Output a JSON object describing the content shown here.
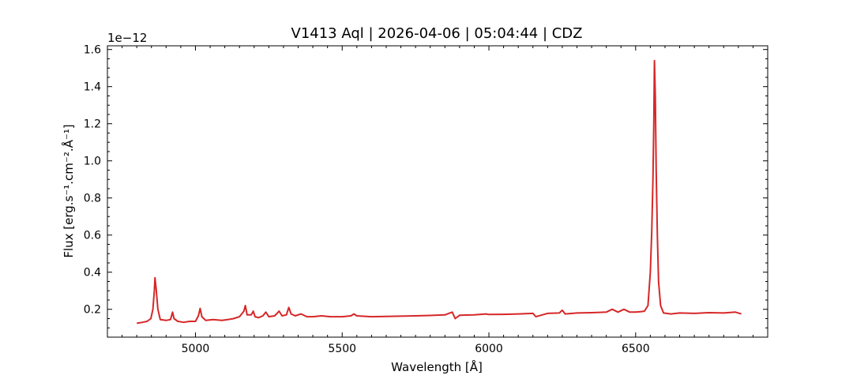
{
  "chart_data": {
    "type": "line",
    "title": "V1413 Aql | 2026-04-06 | 05:04:44 | CDZ",
    "xlabel": "Wavelength [Å]",
    "ylabel": "Flux [erg.s⁻¹.cm⁻².Å⁻¹]",
    "y_offset_label": "1e−12",
    "xlim": [
      4700,
      6950
    ],
    "ylim": [
      0.05,
      1.62
    ],
    "y_scale_factor": 1e-12,
    "xticks": [
      5000,
      5500,
      6000,
      6500
    ],
    "xtick_labels": [
      "5000",
      "5500",
      "6000",
      "6500"
    ],
    "yticks": [
      0.2,
      0.4,
      0.6,
      0.8,
      1.0,
      1.2,
      1.4,
      1.6
    ],
    "ytick_labels": [
      "0.2",
      "0.4",
      "0.6",
      "0.8",
      "1.0",
      "1.2",
      "1.4",
      "1.6"
    ],
    "grid": false,
    "legend": "none",
    "series_color": "#d62728",
    "series": [
      {
        "points": [
          [
            4800,
            0.125
          ],
          [
            4820,
            0.13
          ],
          [
            4835,
            0.135
          ],
          [
            4848,
            0.15
          ],
          [
            4855,
            0.2
          ],
          [
            4860,
            0.3
          ],
          [
            4862,
            0.37
          ],
          [
            4866,
            0.31
          ],
          [
            4872,
            0.2
          ],
          [
            4880,
            0.145
          ],
          [
            4900,
            0.14
          ],
          [
            4915,
            0.145
          ],
          [
            4922,
            0.185
          ],
          [
            4927,
            0.15
          ],
          [
            4940,
            0.135
          ],
          [
            4960,
            0.13
          ],
          [
            4980,
            0.135
          ],
          [
            5000,
            0.135
          ],
          [
            5010,
            0.165
          ],
          [
            5016,
            0.205
          ],
          [
            5022,
            0.16
          ],
          [
            5035,
            0.14
          ],
          [
            5060,
            0.145
          ],
          [
            5090,
            0.14
          ],
          [
            5110,
            0.145
          ],
          [
            5130,
            0.15
          ],
          [
            5150,
            0.16
          ],
          [
            5165,
            0.19
          ],
          [
            5170,
            0.22
          ],
          [
            5176,
            0.17
          ],
          [
            5190,
            0.17
          ],
          [
            5197,
            0.19
          ],
          [
            5203,
            0.16
          ],
          [
            5215,
            0.155
          ],
          [
            5230,
            0.165
          ],
          [
            5240,
            0.185
          ],
          [
            5250,
            0.16
          ],
          [
            5270,
            0.165
          ],
          [
            5285,
            0.19
          ],
          [
            5295,
            0.165
          ],
          [
            5310,
            0.17
          ],
          [
            5318,
            0.21
          ],
          [
            5326,
            0.175
          ],
          [
            5340,
            0.165
          ],
          [
            5360,
            0.175
          ],
          [
            5380,
            0.16
          ],
          [
            5400,
            0.16
          ],
          [
            5430,
            0.165
          ],
          [
            5460,
            0.16
          ],
          [
            5500,
            0.16
          ],
          [
            5530,
            0.165
          ],
          [
            5540,
            0.175
          ],
          [
            5550,
            0.165
          ],
          [
            5600,
            0.16
          ],
          [
            5650,
            0.162
          ],
          [
            5700,
            0.163
          ],
          [
            5750,
            0.165
          ],
          [
            5800,
            0.167
          ],
          [
            5850,
            0.17
          ],
          [
            5875,
            0.185
          ],
          [
            5885,
            0.15
          ],
          [
            5900,
            0.168
          ],
          [
            5950,
            0.17
          ],
          [
            5990,
            0.175
          ],
          [
            6000,
            0.172
          ],
          [
            6050,
            0.173
          ],
          [
            6100,
            0.175
          ],
          [
            6150,
            0.178
          ],
          [
            6160,
            0.16
          ],
          [
            6200,
            0.178
          ],
          [
            6240,
            0.18
          ],
          [
            6250,
            0.195
          ],
          [
            6260,
            0.175
          ],
          [
            6300,
            0.18
          ],
          [
            6350,
            0.182
          ],
          [
            6400,
            0.185
          ],
          [
            6420,
            0.2
          ],
          [
            6440,
            0.185
          ],
          [
            6460,
            0.2
          ],
          [
            6480,
            0.185
          ],
          [
            6500,
            0.185
          ],
          [
            6520,
            0.188
          ],
          [
            6530,
            0.19
          ],
          [
            6542,
            0.22
          ],
          [
            6550,
            0.4
          ],
          [
            6555,
            0.62
          ],
          [
            6559,
            0.9
          ],
          [
            6562,
            1.2
          ],
          [
            6564,
            1.54
          ],
          [
            6567,
            1.35
          ],
          [
            6570,
            0.95
          ],
          [
            6574,
            0.6
          ],
          [
            6578,
            0.35
          ],
          [
            6585,
            0.22
          ],
          [
            6595,
            0.18
          ],
          [
            6620,
            0.175
          ],
          [
            6650,
            0.18
          ],
          [
            6700,
            0.178
          ],
          [
            6750,
            0.182
          ],
          [
            6800,
            0.18
          ],
          [
            6840,
            0.185
          ],
          [
            6860,
            0.175
          ]
        ]
      }
    ]
  }
}
